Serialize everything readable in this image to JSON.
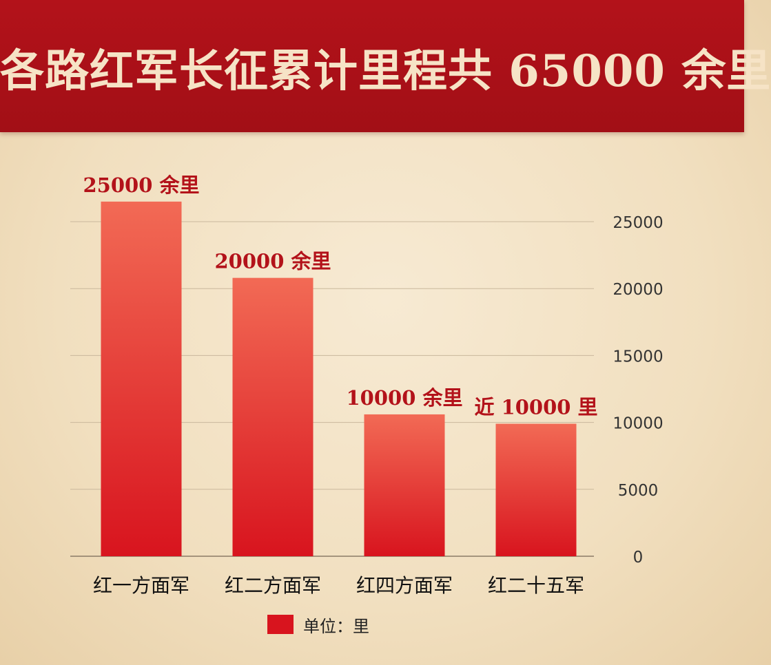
{
  "header": {
    "title": "各路红军长征累计里程共 65000 余里"
  },
  "legend": {
    "label": "单位：里"
  },
  "colors": {
    "banner": "#a20f16",
    "bar_top": "#f26a55",
    "bar_bottom": "#d8141e",
    "label": "#b3121a"
  },
  "chart_data": {
    "type": "bar",
    "categories": [
      "红一方面军",
      "红二方面军",
      "红四方面军",
      "红二十五军"
    ],
    "values": [
      26500,
      20800,
      10600,
      9900
    ],
    "data_labels": [
      "25000 余里",
      "20000 余里",
      "10000 余里",
      "近 10000 里"
    ],
    "yticks": [
      "0",
      "5000",
      "10000",
      "15000",
      "20000",
      "25000"
    ],
    "ylim": [
      0,
      25000
    ],
    "grid": true,
    "axis_side": "right",
    "legend_position": "bottom-center"
  }
}
